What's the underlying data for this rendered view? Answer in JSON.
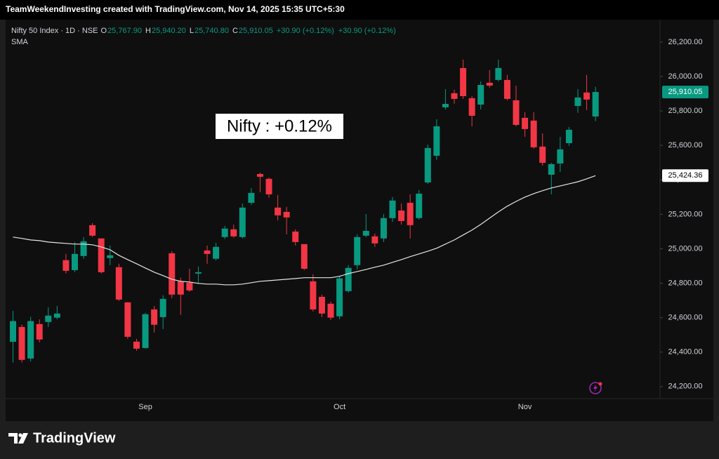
{
  "caption": "TeamWeekendInvesting created with TradingView.com, Nov 14, 2025 15:35 UTC+5:30",
  "header": {
    "fields": [
      {
        "key": "O",
        "text": "25,767.90"
      },
      {
        "key": "H",
        "text": "25,940.20"
      },
      {
        "key": "L",
        "text": "25,740.80"
      },
      {
        "key": "C",
        "text": "25,910.05"
      }
    ],
    "change": "+30.90 (+0.12%)"
  },
  "footer": {
    "brand": "TradingView"
  },
  "chart_data": {
    "type": "candlestick",
    "annotation": "Nifty : +0.12%",
    "categories": [
      null,
      null,
      null,
      null,
      null,
      null,
      null,
      null,
      null,
      null,
      null,
      null,
      null,
      null,
      null,
      "Sep",
      null,
      null,
      null,
      null,
      null,
      null,
      null,
      null,
      null,
      null,
      null,
      null,
      null,
      null,
      null,
      null,
      null,
      null,
      null,
      null,
      null,
      "Oct",
      null,
      null,
      null,
      null,
      null,
      null,
      null,
      null,
      null,
      null,
      null,
      null,
      null,
      null,
      null,
      null,
      null,
      null,
      null,
      null,
      "Nov",
      null,
      null,
      null,
      null,
      null,
      null,
      null,
      null
    ],
    "ylim": [
      24130,
      26330
    ],
    "yticks": [
      {
        "value": 24200,
        "label": "24,200.00"
      },
      {
        "value": 24400,
        "label": "24,400.00"
      },
      {
        "value": 24600,
        "label": "24,600.00"
      },
      {
        "value": 24800,
        "label": "24,800.00"
      },
      {
        "value": 25000,
        "label": "25,000.00"
      },
      {
        "value": 25200,
        "label": "25,200.00"
      },
      {
        "value": 25400,
        "label": "25,400.00"
      },
      {
        "value": 25600,
        "label": "25,600.00"
      },
      {
        "value": 25800,
        "label": "25,800.00"
      },
      {
        "value": 26000,
        "label": "26,000.00"
      },
      {
        "value": 26200,
        "label": "26,200.00"
      }
    ],
    "grid": false,
    "series": [
      {
        "name": "Nifty 50 Index · 1D · NSE",
        "up_color": "#089981",
        "down_color": "#f23645",
        "open": [
          24460,
          24546,
          24363,
          24563,
          24575,
          24600,
          24934,
          24876,
          24958,
          25137,
          25060,
          24946,
          24893,
          24689,
          24461,
          24424,
          24648,
          24603,
          24974,
          24811,
          24803,
          24856,
          24990,
          24942,
          25068,
          25113,
          25068,
          25267,
          25434,
          25406,
          25239,
          25214,
          25100,
          25027,
          24811,
          24721,
          24681,
          24608,
          24754,
          24905,
          25076,
          25072,
          25060,
          25178,
          25222,
          25267,
          25178,
          25385,
          25540,
          25821,
          25903,
          26049,
          25874,
          25837,
          25964,
          25980,
          25980,
          25862,
          25760,
          25744,
          25593,
          25430,
          25495,
          25613,
          25829,
          25907,
          25767.9
        ],
        "high": [
          24640,
          24560,
          24605,
          24590,
          24660,
          24668,
          24970,
          25039,
          25068,
          25149,
          25060,
          25019,
          24913,
          24689,
          24477,
          24628,
          24668,
          24730,
          24986,
          24832,
          24884,
          24897,
          25019,
          25035,
          25133,
          25141,
          25263,
          25353,
          25442,
          25414,
          25312,
          25243,
          25113,
          25027,
          24852,
          24734,
          24693,
          24844,
          24905,
          25084,
          25202,
          25088,
          25202,
          25300,
          25263,
          25316,
          25341,
          25605,
          25752,
          25927,
          25923,
          26098,
          25886,
          25972,
          26037,
          26098,
          26009,
          25947,
          25793,
          25793,
          25670,
          25499,
          25650,
          25707,
          25927,
          26009,
          25940.2
        ],
        "low": [
          24340,
          24340,
          24347,
          24457,
          24546,
          24590,
          24856,
          24864,
          24942,
          25068,
          24856,
          24905,
          24697,
          24477,
          24408,
          24420,
          24514,
          24534,
          24713,
          24616,
          24750,
          24799,
          24913,
          24933,
          25056,
          25064,
          25060,
          25255,
          25328,
          25296,
          25165,
          25084,
          25019,
          24876,
          24636,
          24603,
          24587,
          24591,
          24746,
          24880,
          25068,
          25011,
          25039,
          25157,
          25141,
          25060,
          25170,
          25377,
          25516,
          25809,
          25842,
          25870,
          25711,
          25809,
          25935,
          25972,
          25862,
          25711,
          25650,
          25581,
          25483,
          25316,
          25446,
          25597,
          25789,
          25805,
          25740.8
        ],
        "close": [
          24580,
          24355,
          24580,
          24473,
          24612,
          24624,
          24872,
          24970,
          25043,
          25076,
          24864,
          24962,
          24705,
          24489,
          24420,
          24620,
          24559,
          24709,
          24734,
          24734,
          24758,
          24864,
          24970,
          25011,
          25117,
          25072,
          25239,
          25324,
          25418,
          25316,
          25194,
          25182,
          25039,
          24884,
          24648,
          24624,
          24600,
          24828,
          24889,
          25068,
          25104,
          25031,
          25178,
          25280,
          25161,
          25137,
          25320,
          25585,
          25711,
          25841,
          25870,
          25886,
          25772,
          25951,
          25947,
          26049,
          25870,
          25719,
          25695,
          25589,
          25499,
          25491,
          25577,
          25691,
          25878,
          25866,
          25910.05
        ],
        "value_labels": [
          null,
          null,
          null,
          null,
          null,
          null,
          null,
          null,
          null,
          null,
          null,
          null,
          null,
          null,
          null,
          null,
          null,
          null,
          null,
          null,
          null,
          null,
          null,
          null,
          null,
          null,
          null,
          null,
          null,
          null,
          null,
          null,
          null,
          null,
          null,
          null,
          null,
          null,
          null,
          null,
          null,
          null,
          null,
          null,
          null,
          null,
          null,
          null,
          null,
          null,
          null,
          null,
          null,
          null,
          null,
          null,
          null,
          null,
          null,
          null,
          null,
          null,
          null,
          null,
          null,
          null,
          "25,910.05"
        ]
      },
      {
        "name": "SMA",
        "type": "line",
        "color": "#e6e6e6",
        "values": [
          25068,
          25060,
          25051,
          25047,
          25039,
          25035,
          25031,
          25027,
          25027,
          25023,
          25011,
          24994,
          24962,
          24937,
          24913,
          24888,
          24864,
          24844,
          24823,
          24811,
          24807,
          24799,
          24795,
          24795,
          24791,
          24791,
          24795,
          24803,
          24811,
          24815,
          24819,
          24823,
          24827,
          24832,
          24832,
          24832,
          24832,
          24840,
          24856,
          24868,
          24880,
          24893,
          24905,
          24921,
          24937,
          24954,
          24970,
          24986,
          25003,
          25027,
          25051,
          25080,
          25108,
          25141,
          25178,
          25214,
          25247,
          25275,
          25300,
          25320,
          25337,
          25353,
          25365,
          25377,
          25389,
          25406,
          25424.36
        ],
        "value_labels": [
          null,
          null,
          null,
          null,
          null,
          null,
          null,
          null,
          null,
          null,
          null,
          null,
          null,
          null,
          null,
          null,
          null,
          null,
          null,
          null,
          null,
          null,
          null,
          null,
          null,
          null,
          null,
          null,
          null,
          null,
          null,
          null,
          null,
          null,
          null,
          null,
          null,
          null,
          null,
          null,
          null,
          null,
          null,
          null,
          null,
          null,
          null,
          null,
          null,
          null,
          null,
          null,
          null,
          null,
          null,
          null,
          null,
          null,
          null,
          null,
          null,
          null,
          null,
          null,
          null,
          null,
          "25,424.36"
        ]
      }
    ]
  }
}
